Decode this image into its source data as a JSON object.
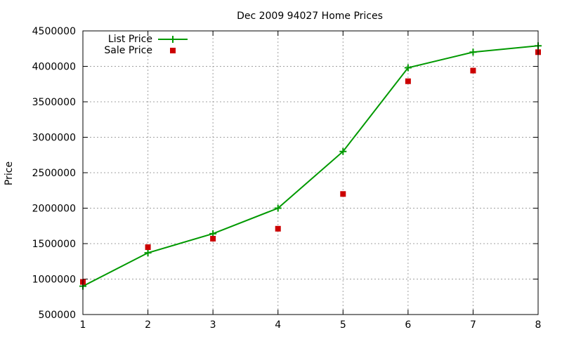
{
  "chart_data": {
    "type": "line",
    "title": "Dec 2009 94027 Home Prices",
    "xlabel": "",
    "ylabel": "Price",
    "xlim": [
      1,
      8
    ],
    "ylim": [
      500000,
      4500000
    ],
    "x_ticks": [
      1,
      2,
      3,
      4,
      5,
      6,
      7,
      8
    ],
    "y_ticks": [
      500000,
      1000000,
      1500000,
      2000000,
      2500000,
      3000000,
      3500000,
      4000000,
      4500000
    ],
    "grid": true,
    "legend_position": "top-left",
    "series": [
      {
        "name": "List Price",
        "style": "line-with-plus-markers",
        "color": "#009900",
        "x": [
          1,
          2,
          3,
          4,
          5,
          6,
          7,
          8
        ],
        "values": [
          900000,
          1370000,
          1640000,
          2000000,
          2800000,
          3980000,
          4200000,
          4290000
        ]
      },
      {
        "name": "Sale Price",
        "style": "square-markers",
        "color": "#cc0000",
        "x": [
          1,
          2,
          3,
          4,
          5,
          6,
          7,
          8
        ],
        "values": [
          960000,
          1450000,
          1570000,
          1710000,
          2200000,
          3790000,
          3940000,
          4200000
        ]
      }
    ]
  }
}
